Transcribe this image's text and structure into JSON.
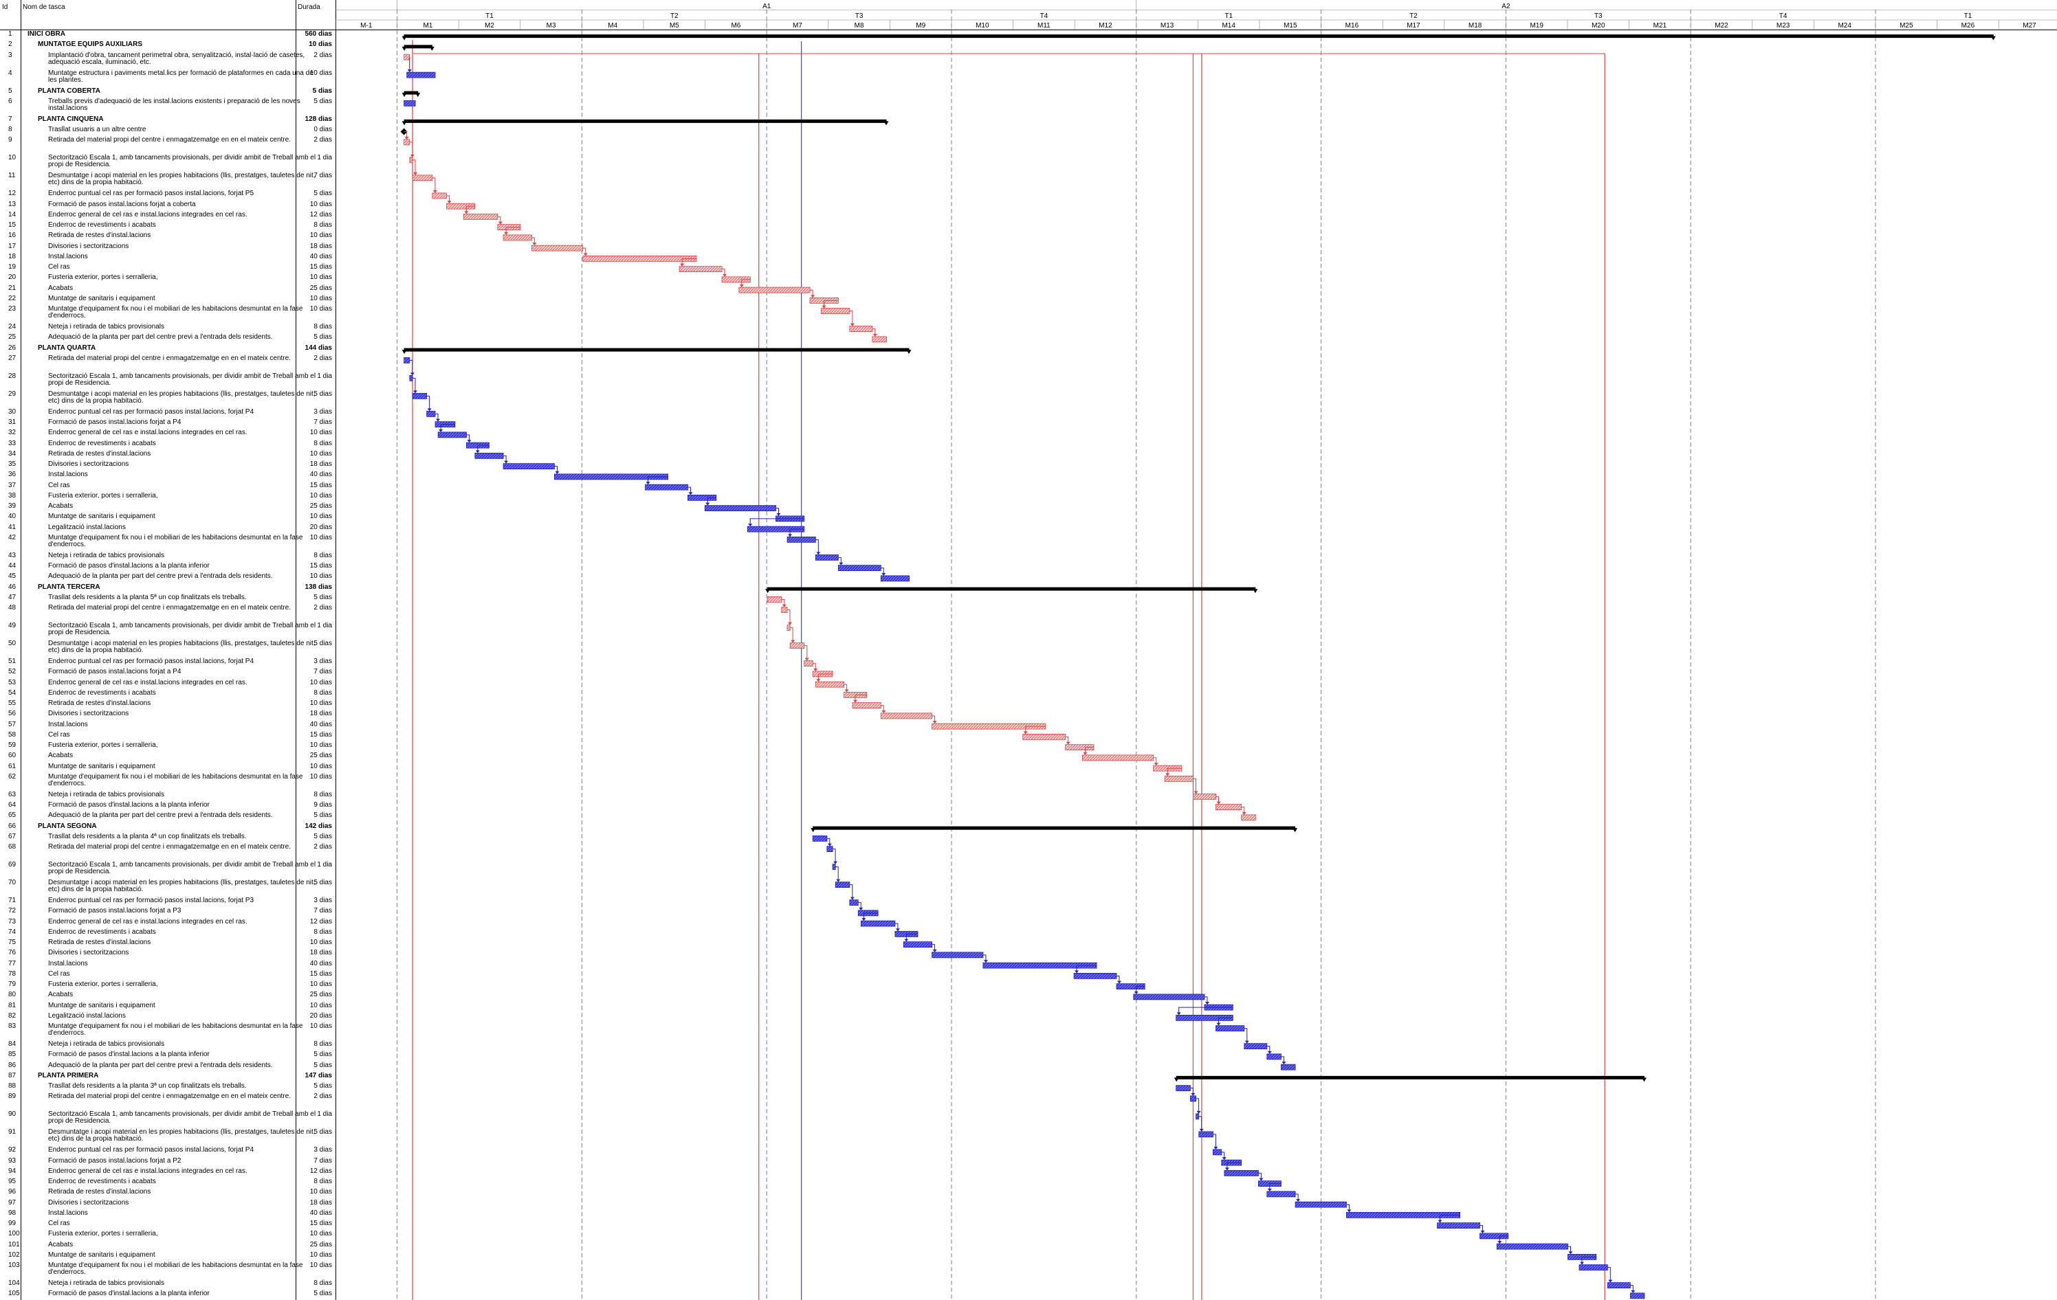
{
  "columns": {
    "id": "Id",
    "name": "Nom de tasca",
    "duration": "Durada"
  },
  "timescale": {
    "years": [
      "A1",
      "A2"
    ],
    "quarters": [
      "T1",
      "T2",
      "T3",
      "T4",
      "T1",
      "T2",
      "T3",
      "T4",
      "T1"
    ],
    "months": [
      "M-1",
      "M1",
      "M2",
      "M3",
      "M4",
      "M5",
      "M6",
      "M7",
      "M8",
      "M9",
      "M10",
      "M11",
      "M12",
      "M13",
      "M14",
      "M15",
      "M16",
      "M17",
      "M18",
      "M19",
      "M20",
      "M21",
      "M22",
      "M23",
      "M24",
      "M25",
      "M26",
      "M27"
    ]
  },
  "colors": {
    "summary": "#000000",
    "task": "#4040e0",
    "critical": "#e04040",
    "grid": "#808080"
  },
  "tasks": [
    {
      "id": "1",
      "name": "INICI OBRA",
      "dur": "560 dias",
      "level": 0
    },
    {
      "id": "2",
      "name": "MUNTATGE EQUIPS AUXILIARS",
      "dur": "10 dias",
      "level": 1
    },
    {
      "id": "3",
      "name": "Implantació d'obra, tancament perimetral obra, senyalització, instal·lació de casetes, adequació escala, iluminació, etc.",
      "dur": "2 dias",
      "level": 2,
      "wrap": true
    },
    {
      "id": "4",
      "name": "Muntatge estructura i paviments metal.lics per formació de plataformes en cada una de les plantes.",
      "dur": "10 dias",
      "level": 2,
      "wrap": true
    },
    {
      "id": "5",
      "name": "PLANTA COBERTA",
      "dur": "5 dias",
      "level": 1
    },
    {
      "id": "6",
      "name": "Treballs previs d'adequació de les instal.lacions existents i preparació de les noves instal.lacions",
      "dur": "5 dias",
      "level": 2,
      "wrap": true
    },
    {
      "id": "7",
      "name": "PLANTA CINQUENA",
      "dur": "128 dias",
      "level": 1
    },
    {
      "id": "8",
      "name": "Trasllat usuaris a un altre centre",
      "dur": "0 dias",
      "level": 2
    },
    {
      "id": "9",
      "name": "Retirada del material propi del centre i enmagatzematge en en el mateix centre.",
      "dur": "2 dias",
      "level": 2,
      "wrap": true
    },
    {
      "id": "10",
      "name": "Sectorització Escala 1, amb tancaments provisionals, per dividir ambit de Treball amb el propi de Residencia.",
      "dur": "1 dia",
      "level": 2,
      "wrap": true
    },
    {
      "id": "11",
      "name": "Desmuntatge i acopi material en les propies habitacions (llis, prestatges, tauletes de nit, etc) dins de la propia habitació.",
      "dur": "7 dias",
      "level": 2,
      "wrap": true
    },
    {
      "id": "12",
      "name": "Enderroc puntual cel ras per formació pasos instal.lacions, forjat P5",
      "dur": "5 dias",
      "level": 2
    },
    {
      "id": "13",
      "name": "Formació de pasos instal.lacions forjat a coberta",
      "dur": "10 dias",
      "level": 2
    },
    {
      "id": "14",
      "name": "Enderroc general de cel ras e instal.lacions integrades en cel ras.",
      "dur": "12 dias",
      "level": 2
    },
    {
      "id": "15",
      "name": "Enderroc de revestiments i acabats",
      "dur": "8 dias",
      "level": 2
    },
    {
      "id": "16",
      "name": "Retirada de restes d'instal.lacions",
      "dur": "10 dias",
      "level": 2
    },
    {
      "id": "17",
      "name": "Divisories i sectoritzacions",
      "dur": "18 dias",
      "level": 2
    },
    {
      "id": "18",
      "name": "Instal.lacions",
      "dur": "40 dias",
      "level": 2
    },
    {
      "id": "19",
      "name": "Cel ras",
      "dur": "15 dias",
      "level": 2
    },
    {
      "id": "20",
      "name": "Fusteria exterior, portes i serralleria,",
      "dur": "10 dias",
      "level": 2
    },
    {
      "id": "21",
      "name": "Acabats",
      "dur": "25 dias",
      "level": 2
    },
    {
      "id": "22",
      "name": "Muntatge de sanitaris i equipament",
      "dur": "10 dias",
      "level": 2
    },
    {
      "id": "23",
      "name": "Muntatge d'equipament fix nou i el mobiliari de les habitacions desmuntat en la fase d'enderrocs.",
      "dur": "10 dias",
      "level": 2,
      "wrap": true
    },
    {
      "id": "24",
      "name": "Neteja i retirada de tabics provisionals",
      "dur": "8 dias",
      "level": 2
    },
    {
      "id": "25",
      "name": "Adequació de la planta per part del centre previ a l'entrada dels residents.",
      "dur": "5 dias",
      "level": 2
    },
    {
      "id": "26",
      "name": "PLANTA QUARTA",
      "dur": "144 dias",
      "level": 1
    },
    {
      "id": "27",
      "name": "Retirada del material propi del centre i enmagatzematge en en el mateix centre.",
      "dur": "2 dias",
      "level": 2,
      "wrap": true
    },
    {
      "id": "28",
      "name": "Sectorització Escala 1, amb tancaments provisionals, per dividir ambit de Treball amb el propi de Residencia.",
      "dur": "1 dia",
      "level": 2,
      "wrap": true
    },
    {
      "id": "29",
      "name": "Desmuntatge i acopi material en les propies habitacions (llis, prestatges, tauletes de nit, etc) dins de la propia habitació.",
      "dur": "5 dias",
      "level": 2,
      "wrap": true
    },
    {
      "id": "30",
      "name": "Enderroc puntual cel ras per formació pasos instal.lacions, forjat P4",
      "dur": "3 dias",
      "level": 2
    },
    {
      "id": "31",
      "name": "Formació de pasos instal.lacions forjat a P4",
      "dur": "7 dias",
      "level": 2
    },
    {
      "id": "32",
      "name": "Enderroc general de cel ras e instal.lacions integrades en cel ras.",
      "dur": "10 dias",
      "level": 2
    },
    {
      "id": "33",
      "name": "Enderroc de revestiments i acabats",
      "dur": "8 dias",
      "level": 2
    },
    {
      "id": "34",
      "name": "Retirada de restes d'instal.lacions",
      "dur": "10 dias",
      "level": 2
    },
    {
      "id": "35",
      "name": "Divisories i sectoritzacions",
      "dur": "18 dias",
      "level": 2
    },
    {
      "id": "36",
      "name": "Instal.lacions",
      "dur": "40 dias",
      "level": 2
    },
    {
      "id": "37",
      "name": "Cel ras",
      "dur": "15 dias",
      "level": 2
    },
    {
      "id": "38",
      "name": "Fusteria exterior, portes i serralleria,",
      "dur": "10 dias",
      "level": 2
    },
    {
      "id": "39",
      "name": "Acabats",
      "dur": "25 dias",
      "level": 2
    },
    {
      "id": "40",
      "name": "Muntatge de sanitaris i equipament",
      "dur": "10 dias",
      "level": 2
    },
    {
      "id": "41",
      "name": "Legalització instal.lacions",
      "dur": "20 dias",
      "level": 2
    },
    {
      "id": "42",
      "name": "Muntatge d'equipament fix nou i el mobiliari de les habitacions desmuntat en la fase d'enderrocs.",
      "dur": "10 dias",
      "level": 2,
      "wrap": true
    },
    {
      "id": "43",
      "name": "Neteja i retirada de tabics provisionals",
      "dur": "8 dias",
      "level": 2
    },
    {
      "id": "44",
      "name": "Formació de pasos d'instal.lacions a la planta inferior",
      "dur": "15 dias",
      "level": 2
    },
    {
      "id": "45",
      "name": "Adequació de la planta per part del centre previ a l'entrada dels residents.",
      "dur": "10 dias",
      "level": 2
    },
    {
      "id": "46",
      "name": "PLANTA TERCERA",
      "dur": "138 dias",
      "level": 1
    },
    {
      "id": "47",
      "name": "Trasllat dels residents a la planta 5ª un cop finalitzats els treballs.",
      "dur": "5 dias",
      "level": 2
    },
    {
      "id": "48",
      "name": "Retirada del material propi del centre i enmagatzematge en en el mateix centre.",
      "dur": "2 dias",
      "level": 2,
      "wrap": true
    },
    {
      "id": "49",
      "name": "Sectorització Escala 1, amb tancaments provisionals, per dividir ambit de Treball amb el propi de Residencia.",
      "dur": "1 dia",
      "level": 2,
      "wrap": true
    },
    {
      "id": "50",
      "name": "Desmuntatge i acopi material en les propies habitacions (llis, prestatges, tauletes de nit, etc) dins de la propia habitació.",
      "dur": "5 dias",
      "level": 2,
      "wrap": true
    },
    {
      "id": "51",
      "name": "Enderroc puntual cel ras per formació pasos instal.lacions, forjat P4",
      "dur": "3 dias",
      "level": 2
    },
    {
      "id": "52",
      "name": "Formació de pasos instal.lacions forjat a P4",
      "dur": "7 dias",
      "level": 2
    },
    {
      "id": "53",
      "name": "Enderroc general de cel ras e instal.lacions integrades en cel ras.",
      "dur": "10 dias",
      "level": 2
    },
    {
      "id": "54",
      "name": "Enderroc de revestiments i acabats",
      "dur": "8 dias",
      "level": 2
    },
    {
      "id": "55",
      "name": "Retirada de restes d'instal.lacions",
      "dur": "10 dias",
      "level": 2
    },
    {
      "id": "56",
      "name": "Divisories i sectoritzacions",
      "dur": "18 dias",
      "level": 2
    },
    {
      "id": "57",
      "name": "Instal.lacions",
      "dur": "40 dias",
      "level": 2
    },
    {
      "id": "58",
      "name": "Cel ras",
      "dur": "15 dias",
      "level": 2
    },
    {
      "id": "59",
      "name": "Fusteria exterior, portes i serralleria,",
      "dur": "10 dias",
      "level": 2
    },
    {
      "id": "60",
      "name": "Acabats",
      "dur": "25 dias",
      "level": 2
    },
    {
      "id": "61",
      "name": "Muntatge de sanitaris i equipament",
      "dur": "10 dias",
      "level": 2
    },
    {
      "id": "62",
      "name": "Muntatge d'equipament fix nou i el mobiliari de les habitacions desmuntat en la fase d'enderrocs.",
      "dur": "10 dias",
      "level": 2,
      "wrap": true
    },
    {
      "id": "63",
      "name": "Neteja i retirada de tabics provisionals",
      "dur": "8 dias",
      "level": 2
    },
    {
      "id": "64",
      "name": "Formació de pasos d'instal.lacions a la planta inferior",
      "dur": "9 dias",
      "level": 2
    },
    {
      "id": "65",
      "name": "Adequació de la planta per part del centre previ a l'entrada dels residents.",
      "dur": "5 dias",
      "level": 2
    },
    {
      "id": "66",
      "name": "PLANTA SEGONA",
      "dur": "142 dias",
      "level": 1
    },
    {
      "id": "67",
      "name": "Trasllat dels residents a la planta 4ª un cop finalitzats els treballs.",
      "dur": "5 dias",
      "level": 2
    },
    {
      "id": "68",
      "name": "Retirada del material propi del centre i enmagatzematge en en el mateix centre.",
      "dur": "2 dias",
      "level": 2,
      "wrap": true
    },
    {
      "id": "69",
      "name": "Sectorització Escala 1, amb tancaments provisionals, per dividir ambit de Treball amb el propi de Residencia.",
      "dur": "1 dia",
      "level": 2,
      "wrap": true
    },
    {
      "id": "70",
      "name": "Desmuntatge i acopi material en les propies habitacions (llis, prestatges, tauletes de nit, etc) dins de la propia habitació.",
      "dur": "5 dias",
      "level": 2,
      "wrap": true
    },
    {
      "id": "71",
      "name": "Enderroc puntual cel ras per formació pasos instal.lacions, forjat P3",
      "dur": "3 dias",
      "level": 2
    },
    {
      "id": "72",
      "name": "Formació de pasos instal.lacions forjat a P3",
      "dur": "7 dias",
      "level": 2
    },
    {
      "id": "73",
      "name": "Enderroc general de cel ras e instal.lacions integrades en cel ras.",
      "dur": "12 dias",
      "level": 2
    },
    {
      "id": "74",
      "name": "Enderroc de revestiments i acabats",
      "dur": "8 dias",
      "level": 2
    },
    {
      "id": "75",
      "name": "Retirada de restes d'instal.lacions",
      "dur": "10 dias",
      "level": 2
    },
    {
      "id": "76",
      "name": "Divisories i sectoritzacions",
      "dur": "18 dias",
      "level": 2
    },
    {
      "id": "77",
      "name": "Instal.lacions",
      "dur": "40 dias",
      "level": 2
    },
    {
      "id": "78",
      "name": "Cel ras",
      "dur": "15 dias",
      "level": 2
    },
    {
      "id": "79",
      "name": "Fusteria exterior, portes i serralleria,",
      "dur": "10 dias",
      "level": 2
    },
    {
      "id": "80",
      "name": "Acabats",
      "dur": "25 dias",
      "level": 2
    },
    {
      "id": "81",
      "name": "Muntatge de sanitaris i equipament",
      "dur": "10 dias",
      "level": 2
    },
    {
      "id": "82",
      "name": "Legalització instal.lacions",
      "dur": "20 dias",
      "level": 2
    },
    {
      "id": "83",
      "name": "Muntatge d'equipament fix nou i el mobiliari de les habitacions desmuntat en la fase d'enderrocs.",
      "dur": "10 dias",
      "level": 2,
      "wrap": true
    },
    {
      "id": "84",
      "name": "Neteja i retirada de tabics provisionals",
      "dur": "8 dias",
      "level": 2
    },
    {
      "id": "85",
      "name": "Formació de pasos d'instal.lacions a la planta inferior",
      "dur": "5 dias",
      "level": 2
    },
    {
      "id": "86",
      "name": "Adequació de la planta per part del centre previ a l'entrada dels residents.",
      "dur": "5 dias",
      "level": 2
    },
    {
      "id": "87",
      "name": "PLANTA PRIMERA",
      "dur": "147 dias",
      "level": 1
    },
    {
      "id": "88",
      "name": "Trasllat dels residents a la planta 3ª un cop finalitzats els treballs.",
      "dur": "5 dias",
      "level": 2
    },
    {
      "id": "89",
      "name": "Retirada del material propi del centre i enmagatzematge en en el mateix centre.",
      "dur": "2 dias",
      "level": 2,
      "wrap": true
    },
    {
      "id": "90",
      "name": "Sectorització Escala 1, amb tancaments provisionals, per dividir ambit de Treball amb el propi de Residencia.",
      "dur": "1 dia",
      "level": 2,
      "wrap": true
    },
    {
      "id": "91",
      "name": "Desmuntatge i acopi material en les propies habitacions (llis, prestatges, tauletes de nit, etc) dins de la propia habitació.",
      "dur": "5 dias",
      "level": 2,
      "wrap": true
    },
    {
      "id": "92",
      "name": "Enderroc puntual cel ras per formació pasos instal.lacions, forjat P4",
      "dur": "3 dias",
      "level": 2
    },
    {
      "id": "93",
      "name": "Formació de pasos instal.lacions forjat a P2",
      "dur": "7 dias",
      "level": 2
    },
    {
      "id": "94",
      "name": "Enderroc general de cel ras e instal.lacions integrades en cel ras.",
      "dur": "12 dias",
      "level": 2
    },
    {
      "id": "95",
      "name": "Enderroc de revestiments i acabats",
      "dur": "8 dias",
      "level": 2
    },
    {
      "id": "96",
      "name": "Retirada de restes d'instal.lacions",
      "dur": "10 dias",
      "level": 2
    },
    {
      "id": "97",
      "name": "Divisories i sectoritzacions",
      "dur": "18 dias",
      "level": 2
    },
    {
      "id": "98",
      "name": "Instal.lacions",
      "dur": "40 dias",
      "level": 2
    },
    {
      "id": "99",
      "name": "Cel ras",
      "dur": "15 dias",
      "level": 2
    },
    {
      "id": "100",
      "name": "Fusteria exterior, portes i serralleria,",
      "dur": "10 dias",
      "level": 2
    },
    {
      "id": "101",
      "name": "Acabats",
      "dur": "25 dias",
      "level": 2
    },
    {
      "id": "102",
      "name": "Muntatge de sanitaris i equipament",
      "dur": "10 dias",
      "level": 2
    },
    {
      "id": "103",
      "name": "Muntatge d'equipament fix nou i el mobiliari de les habitacions desmuntat en la fase d'enderrocs.",
      "dur": "10 dias",
      "level": 2,
      "wrap": true
    },
    {
      "id": "104",
      "name": "Neteja i retirada de tabics provisionals",
      "dur": "8 dias",
      "level": 2
    },
    {
      "id": "105",
      "name": "Formació de pasos d'instal.lacions a la planta inferior",
      "dur": "5 dias",
      "level": 2
    }
  ]
}
